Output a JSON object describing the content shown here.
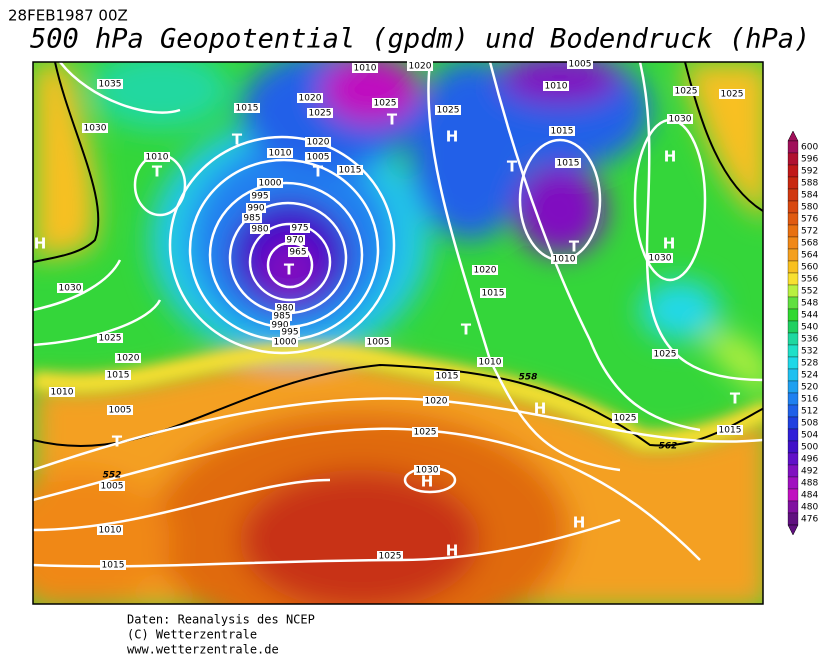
{
  "header": {
    "date": "28FEB1987 00Z",
    "title": "500 hPa Geopotential (gpdm) und Bodendruck (hPa)"
  },
  "colorbar": {
    "labels": [
      600,
      596,
      592,
      588,
      584,
      580,
      576,
      572,
      568,
      564,
      560,
      556,
      552,
      548,
      544,
      540,
      536,
      532,
      528,
      524,
      520,
      516,
      512,
      508,
      504,
      500,
      496,
      492,
      488,
      484,
      480,
      476
    ],
    "colors": [
      "#a0105a",
      "#b01030",
      "#c01818",
      "#c82810",
      "#d03810",
      "#d84810",
      "#e05a10",
      "#e87010",
      "#f08818",
      "#f4a020",
      "#f8c020",
      "#f8e030",
      "#b8f040",
      "#60e040",
      "#30d830",
      "#20d060",
      "#20d8a0",
      "#20e0c8",
      "#20d8e8",
      "#20c0f0",
      "#20a0f0",
      "#2080f0",
      "#2060e8",
      "#2040e0",
      "#3020d8",
      "#4010c8",
      "#6010c8",
      "#8010c0",
      "#a010c0",
      "#c010c0",
      "#8010a0",
      "#601080"
    ]
  },
  "isobar_labels": [
    "1035",
    "1030",
    "1010",
    "1015",
    "1020",
    "1025",
    "1010",
    "1020",
    "1005",
    "1010",
    "1025",
    "1025",
    "1015",
    "1015",
    "1025",
    "1025",
    "1030",
    "1010",
    "1020",
    "1005",
    "1015",
    "1000",
    "995",
    "990",
    "985",
    "980",
    "975",
    "970",
    "965",
    "980",
    "985",
    "990",
    "995",
    "1000",
    "1030",
    "1025",
    "1020",
    "1015",
    "1010",
    "1005",
    "1020",
    "1015",
    "1010",
    "1005",
    "1015",
    "1010",
    "1030",
    "1025",
    "1020",
    "1025",
    "1025",
    "1015",
    "1030",
    "1005",
    "1010",
    "1015",
    "1025"
  ],
  "contour_labels": [
    "558",
    "552",
    "562"
  ],
  "pressure_centers": [
    "T",
    "T",
    "T",
    "T",
    "H",
    "T",
    "H",
    "T",
    "T",
    "H",
    "H",
    "T",
    "T",
    "H",
    "H",
    "H",
    "H",
    "T"
  ],
  "footer": [
    "Daten: Reanalysis des NCEP",
    "(C) Wetterzentrale",
    "www.wetterzentrale.de"
  ]
}
